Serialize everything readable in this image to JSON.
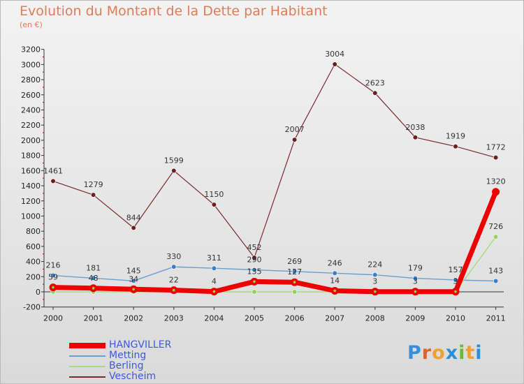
{
  "title": "Evolution du Montant de la Dette par Habitant",
  "unit": "(en €)",
  "logo": {
    "text": "Proxiti",
    "letter_colors": [
      "#3a8fd8",
      "#e0612b",
      "#f0a030",
      "#2c8fd6",
      "#6cb83a",
      "#f0a030",
      "#2c8fd6"
    ]
  },
  "colors": {
    "axis": "#333333",
    "grid_marker": "#cc0000"
  },
  "chart_data": {
    "type": "line",
    "x": [
      "2000",
      "2001",
      "2002",
      "2003",
      "2004",
      "2005",
      "2006",
      "2007",
      "2008",
      "2009",
      "2010",
      "2011"
    ],
    "ylim": [
      -200,
      3200
    ],
    "yticks": [
      -200,
      0,
      200,
      400,
      600,
      800,
      1000,
      1200,
      1400,
      1600,
      1800,
      2000,
      2200,
      2400,
      2600,
      2800,
      3000,
      3200
    ],
    "legend": "bottom-left",
    "series": [
      {
        "name": "Vescheim",
        "color": "#7a2b2b",
        "marker": "#6a1e1e",
        "values": [
          1461,
          1279,
          844,
          1599,
          1150,
          452,
          2007,
          3004,
          2623,
          2038,
          1919,
          1772
        ],
        "labels": [
          "1461",
          "1279",
          "844",
          "1599",
          "1150",
          "452",
          "2007",
          "3004",
          "2623",
          "2038",
          "1919",
          "1772"
        ]
      },
      {
        "name": "Metting",
        "color": "#6a9fd0",
        "marker": "#3a7ec8",
        "values": [
          216,
          181,
          145,
          330,
          311,
          290,
          269,
          246,
          224,
          179,
          157,
          143
        ],
        "labels": [
          "216",
          "181",
          "145",
          "330",
          "311",
          "290",
          "269",
          "246",
          "224",
          "179",
          "157",
          "143"
        ]
      },
      {
        "name": "Berling",
        "color": "#a6db80",
        "marker": "#8fd45a",
        "values": [
          0,
          0,
          0,
          0,
          0,
          0,
          0,
          0,
          0,
          0,
          0,
          726
        ],
        "labels": [
          "",
          "",
          "",
          "",
          "",
          "",
          "",
          "",
          "",
          "",
          "",
          "726"
        ]
      },
      {
        "name": "HANGVILLER",
        "color": "#ee0000",
        "marker": "#ee0000",
        "values": [
          59,
          48,
          34,
          22,
          4,
          135,
          127,
          14,
          3,
          3,
          3,
          1320
        ],
        "labels": [
          "59",
          "48",
          "34",
          "22",
          "4",
          "135",
          "127",
          "14",
          "3",
          "3",
          "3",
          "1320"
        ]
      }
    ],
    "legend_order": [
      "HANGVILLER",
      "Metting",
      "Berling",
      "Vescheim"
    ]
  }
}
